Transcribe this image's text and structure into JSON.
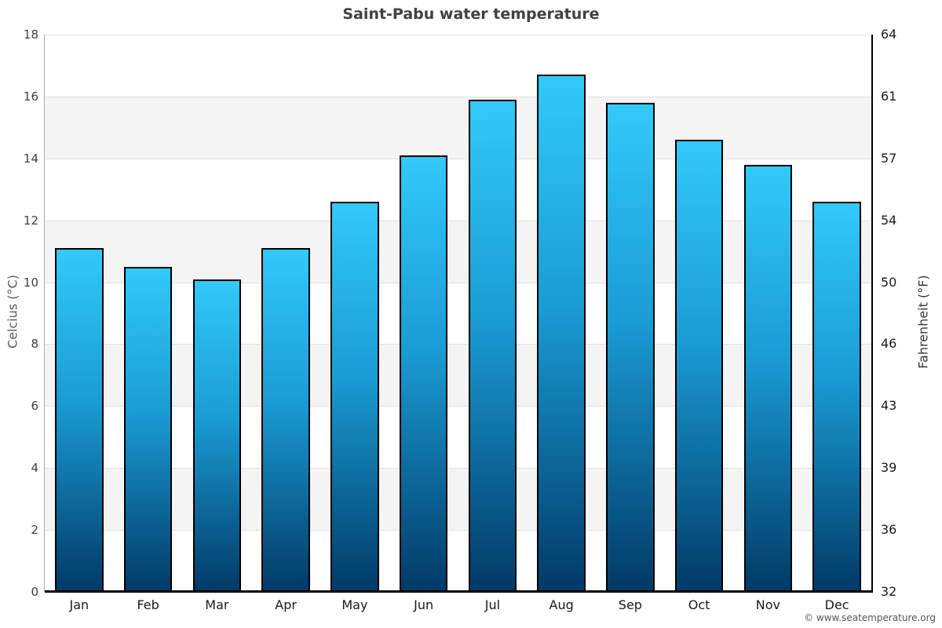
{
  "title": "Saint-Pabu water temperature",
  "footer": "© www.seatemperature.org",
  "axis_labels": {
    "left": "Celcius (°C)",
    "right": "Fahrenheit (°F)"
  },
  "colors": {
    "bar_top": "#33c9fa",
    "bar_bottom": "#013a67",
    "bar_border": "#000000",
    "band": "#f4f4f4",
    "gridline": "#e2e2e2",
    "title_text": "#404040"
  },
  "chart_data": {
    "type": "bar",
    "title": "Saint-Pabu water temperature",
    "categories": [
      "Jan",
      "Feb",
      "Mar",
      "Apr",
      "May",
      "Jun",
      "Jul",
      "Aug",
      "Sep",
      "Oct",
      "Nov",
      "Dec"
    ],
    "values": [
      11.1,
      10.5,
      10.1,
      11.1,
      12.6,
      14.1,
      15.9,
      16.7,
      15.8,
      14.6,
      13.8,
      12.6
    ],
    "series_unit": "°C",
    "xlabel": "",
    "ylabel_left": "Celcius (°C)",
    "ylabel_right": "Fahrenheit (°F)",
    "ylim": [
      0,
      18
    ],
    "yticks_celsius": [
      0,
      2,
      4,
      6,
      8,
      10,
      12,
      14,
      16,
      18
    ],
    "yticks_fahrenheit": [
      32,
      36,
      39,
      43,
      46,
      50,
      54,
      57,
      61,
      64
    ],
    "grid": "horizontal-bands",
    "legend": "none"
  }
}
